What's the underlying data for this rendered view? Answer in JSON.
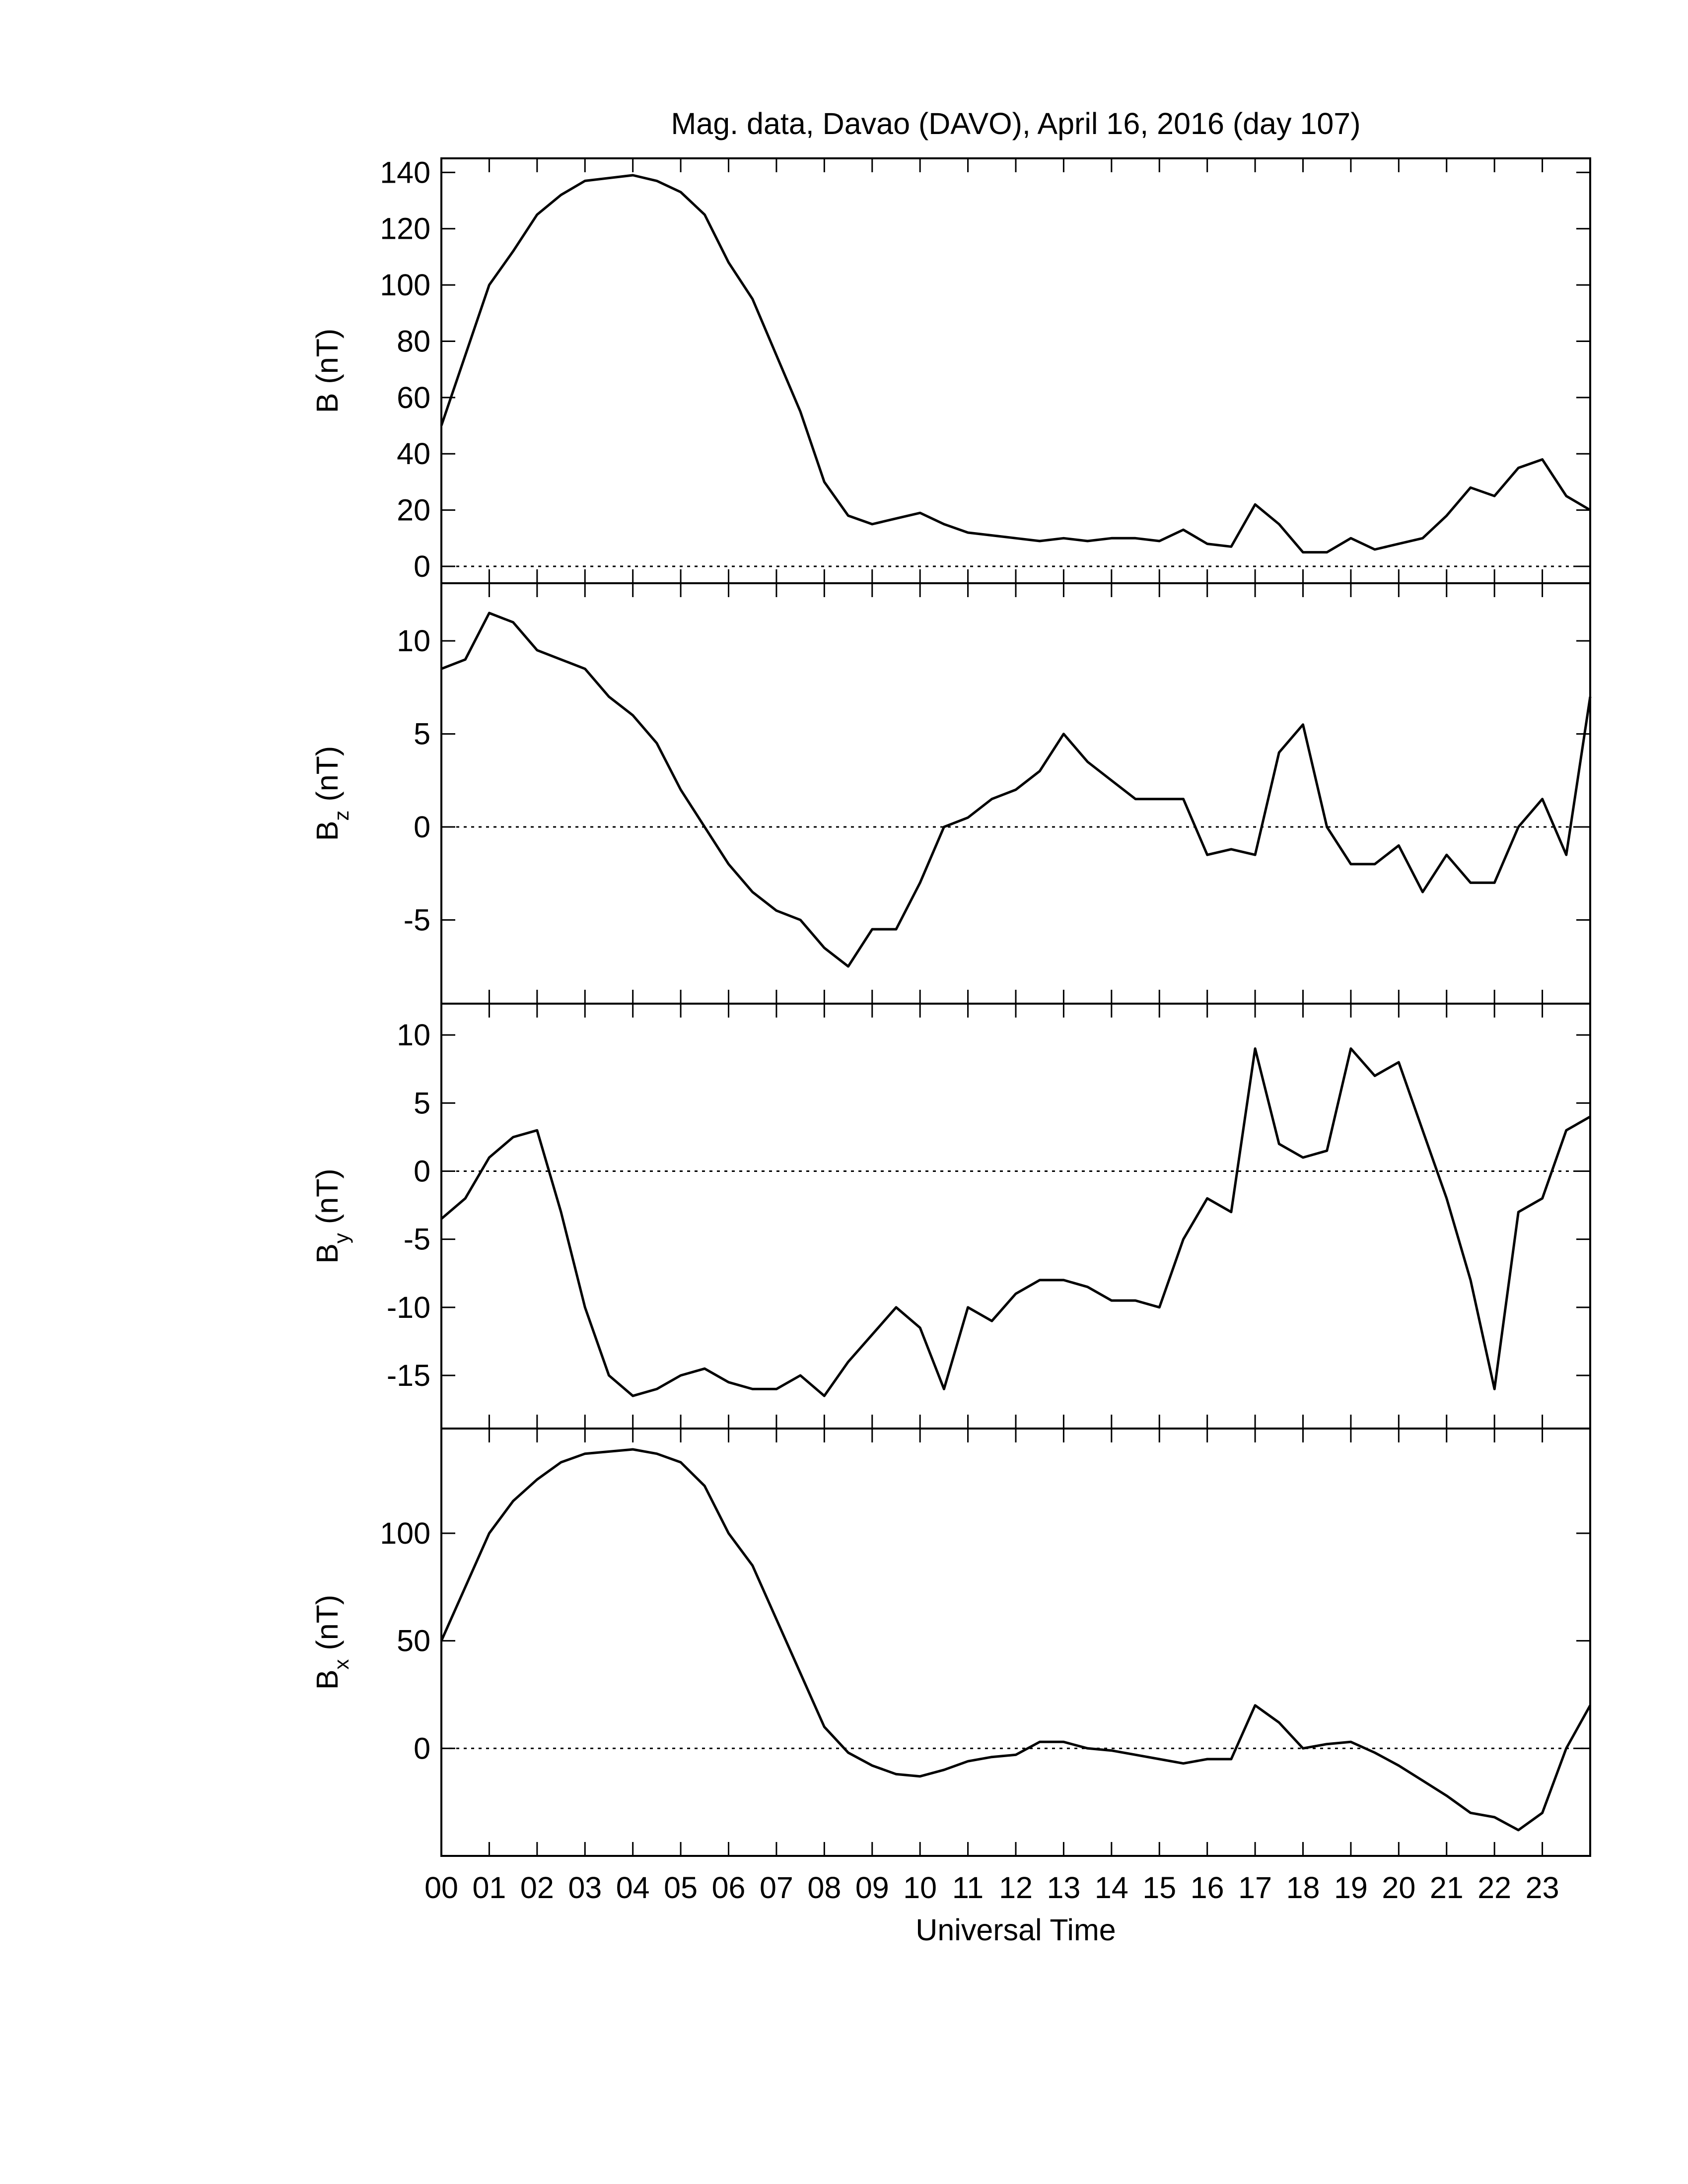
{
  "chart_data": [
    {
      "type": "line",
      "title": "Mag. data, Davao (DAVO), April 16, 2016 (day 107)",
      "ylabel_symbol": "B",
      "ylabel_unit": "(nT)",
      "color": "#000000",
      "zero_line": true,
      "x": [
        0,
        0.5,
        1,
        1.5,
        2,
        2.5,
        3,
        3.5,
        4,
        4.5,
        5,
        5.5,
        6,
        6.5,
        7,
        7.5,
        8,
        8.5,
        9,
        9.5,
        10,
        10.5,
        11,
        11.5,
        12,
        12.5,
        13,
        13.5,
        14,
        14.5,
        15,
        15.5,
        16,
        16.5,
        17,
        17.5,
        18,
        18.5,
        19,
        19.5,
        20,
        20.5,
        21,
        21.5,
        22,
        22.5,
        23,
        23.5,
        24
      ],
      "values": [
        50,
        75,
        100,
        112,
        125,
        132,
        137,
        138,
        139,
        137,
        133,
        125,
        108,
        95,
        75,
        55,
        30,
        18,
        15,
        17,
        19,
        15,
        12,
        11,
        10,
        9,
        10,
        9,
        10,
        10,
        9,
        13,
        8,
        7,
        22,
        15,
        5,
        5,
        10,
        6,
        8,
        10,
        18,
        28,
        25,
        35,
        38,
        25,
        20
      ],
      "xlim": [
        0,
        24
      ],
      "xticks": [
        0,
        1,
        2,
        3,
        4,
        5,
        6,
        7,
        8,
        9,
        10,
        11,
        12,
        13,
        14,
        15,
        16,
        17,
        18,
        19,
        20,
        21,
        22,
        23
      ],
      "ylim": [
        -6,
        145
      ],
      "yticks": [
        0,
        20,
        40,
        60,
        80,
        100,
        120,
        140
      ]
    },
    {
      "type": "line",
      "ylabel_symbol": "B",
      "ylabel_subscript": "z",
      "ylabel_unit": "(nT)",
      "color": "#000000",
      "zero_line": true,
      "x": [
        0,
        0.5,
        1,
        1.5,
        2,
        2.5,
        3,
        3.5,
        4,
        4.5,
        5,
        5.5,
        6,
        6.5,
        7,
        7.5,
        8,
        8.5,
        9,
        9.5,
        10,
        10.5,
        11,
        11.5,
        12,
        12.5,
        13,
        13.5,
        14,
        14.5,
        15,
        15.5,
        16,
        16.5,
        17,
        17.5,
        18,
        18.5,
        19,
        19.5,
        20,
        20.5,
        21,
        21.5,
        22,
        22.5,
        23,
        23.5,
        24
      ],
      "values": [
        8.5,
        9,
        11.5,
        11,
        9.5,
        9,
        8.5,
        7,
        6,
        4.5,
        2,
        0,
        -2,
        -3.5,
        -4.5,
        -5,
        -6.5,
        -7.5,
        -5.5,
        -5.5,
        -3,
        0,
        0.5,
        1.5,
        2,
        3,
        5,
        3.5,
        2.5,
        1.5,
        1.5,
        1.5,
        -1.5,
        -1.2,
        -1.5,
        4,
        5.5,
        0,
        -2,
        -2,
        -1,
        -3.5,
        -1.5,
        -3,
        -3,
        0,
        1.5,
        -1.5,
        7
      ],
      "xlim": [
        0,
        24
      ],
      "xticks": [
        0,
        1,
        2,
        3,
        4,
        5,
        6,
        7,
        8,
        9,
        10,
        11,
        12,
        13,
        14,
        15,
        16,
        17,
        18,
        19,
        20,
        21,
        22,
        23
      ],
      "ylim": [
        -9.5,
        13.1
      ],
      "yticks": [
        -5,
        0,
        5,
        10
      ]
    },
    {
      "type": "line",
      "ylabel_symbol": "B",
      "ylabel_subscript": "y",
      "ylabel_unit": "(nT)",
      "color": "#000000",
      "zero_line": true,
      "x": [
        0,
        0.5,
        1,
        1.5,
        2,
        2.5,
        3,
        3.5,
        4,
        4.5,
        5,
        5.5,
        6,
        6.5,
        7,
        7.5,
        8,
        8.5,
        9,
        9.5,
        10,
        10.5,
        11,
        11.5,
        12,
        12.5,
        13,
        13.5,
        14,
        14.5,
        15,
        15.5,
        16,
        16.5,
        17,
        17.5,
        18,
        18.5,
        19,
        19.5,
        20,
        20.5,
        21,
        21.5,
        22,
        22.5,
        23,
        23.5,
        24
      ],
      "values": [
        -3.5,
        -2,
        1,
        2.5,
        3,
        -3,
        -10,
        -15,
        -16.5,
        -16,
        -15,
        -14.5,
        -15.5,
        -16,
        -16,
        -15,
        -16.5,
        -14,
        -12,
        -10,
        -11.5,
        -16,
        -10,
        -11,
        -9,
        -8,
        -8,
        -8.5,
        -9.5,
        -9.5,
        -10,
        -5,
        -2,
        -3,
        9,
        2,
        1,
        1.5,
        9,
        7,
        8,
        3,
        -2,
        -8,
        -16,
        -3,
        -2,
        3,
        4
      ],
      "xlim": [
        0,
        24
      ],
      "xticks": [
        0,
        1,
        2,
        3,
        4,
        5,
        6,
        7,
        8,
        9,
        10,
        11,
        12,
        13,
        14,
        15,
        16,
        17,
        18,
        19,
        20,
        21,
        22,
        23
      ],
      "ylim": [
        -18.9,
        12.3
      ],
      "yticks": [
        -15,
        -10,
        -5,
        0,
        5,
        10
      ]
    },
    {
      "type": "line",
      "ylabel_symbol": "B",
      "ylabel_subscript": "x",
      "ylabel_unit": "(nT)",
      "color": "#000000",
      "zero_line": true,
      "xlabel": "Universal Time",
      "x": [
        0,
        0.5,
        1,
        1.5,
        2,
        2.5,
        3,
        3.5,
        4,
        4.5,
        5,
        5.5,
        6,
        6.5,
        7,
        7.5,
        8,
        8.5,
        9,
        9.5,
        10,
        10.5,
        11,
        11.5,
        12,
        12.5,
        13,
        13.5,
        14,
        14.5,
        15,
        15.5,
        16,
        16.5,
        17,
        17.5,
        18,
        18.5,
        19,
        19.5,
        20,
        20.5,
        21,
        21.5,
        22,
        22.5,
        23,
        23.5,
        24
      ],
      "values": [
        50,
        75,
        100,
        115,
        125,
        133,
        137,
        138,
        139,
        137,
        133,
        122,
        100,
        85,
        60,
        35,
        10,
        -2,
        -8,
        -12,
        -13,
        -10,
        -6,
        -4,
        -3,
        3,
        3,
        0,
        -1,
        -3,
        -5,
        -7,
        -5,
        -5,
        20,
        12,
        0,
        2,
        3,
        -2,
        -8,
        -15,
        -22,
        -30,
        -32,
        -38,
        -30,
        0,
        20
      ],
      "xlim": [
        0,
        24
      ],
      "xticks": [
        {
          "value": 0,
          "label": "00"
        },
        {
          "value": 1,
          "label": "01"
        },
        {
          "value": 2,
          "label": "02"
        },
        {
          "value": 3,
          "label": "03"
        },
        {
          "value": 4,
          "label": "04"
        },
        {
          "value": 5,
          "label": "05"
        },
        {
          "value": 6,
          "label": "06"
        },
        {
          "value": 7,
          "label": "07"
        },
        {
          "value": 8,
          "label": "08"
        },
        {
          "value": 9,
          "label": "09"
        },
        10,
        11,
        12,
        13,
        14,
        15,
        16,
        17,
        18,
        19,
        20,
        21,
        22,
        23
      ],
      "ylim": [
        -50,
        148.7
      ],
      "yticks": [
        0,
        50,
        100
      ]
    }
  ]
}
